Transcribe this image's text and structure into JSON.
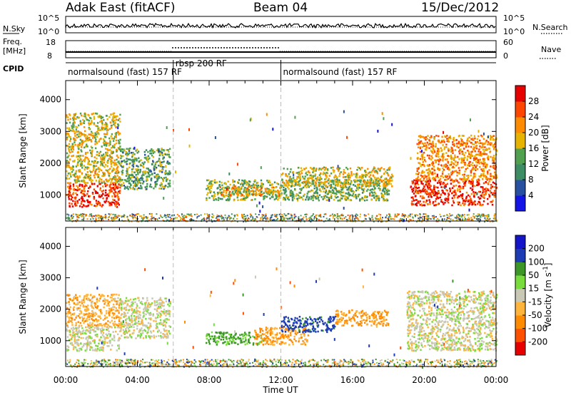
{
  "header": {
    "station": "Adak East (fitACF)",
    "beam": "Beam 04",
    "date": "15/Dec/2012"
  },
  "noise_panel": {
    "left_label": "N.Sky",
    "left_ticks": [
      "10^5",
      "10^0"
    ],
    "right_ticks": [
      "10^5",
      "10^0"
    ],
    "right_label": "N.Search"
  },
  "freq_panel": {
    "left_label_line1": "Freq.",
    "left_label_line2": "[MHz]",
    "left_ticks": [
      "18",
      "8"
    ],
    "right_ticks": [
      "60",
      "0"
    ],
    "right_label": "Nave"
  },
  "cpid": {
    "label": "CPID",
    "segments": [
      {
        "name": "normalsound (fast) 157 RF",
        "start_h": 0,
        "end_h": 6
      },
      {
        "name": "rbsp 200 RF",
        "start_h": 6,
        "end_h": 12
      },
      {
        "name": "normalsound (fast) 157 RF",
        "start_h": 12,
        "end_h": 24
      }
    ]
  },
  "x_axis": {
    "label": "Time UT",
    "ticks": [
      "00:00",
      "04:00",
      "08:00",
      "12:00",
      "16:00",
      "20:00",
      "00:00"
    ]
  },
  "colors": {
    "power": [
      "#1414e6",
      "#2850a0",
      "#3c8c64",
      "#50a050",
      "#e6b400",
      "#ff8c00",
      "#ff4600",
      "#e60000"
    ],
    "velocity": [
      "#e60000",
      "#ff5000",
      "#ff8c00",
      "#ffb43c",
      "#c8c8b4",
      "#78dc3c",
      "#3c9628",
      "#1e3cb4",
      "#1414c8"
    ]
  },
  "chart_data": [
    {
      "type": "heatmap",
      "quantity": "Power",
      "ylabel": "Slant Range [km]",
      "yticks": [
        1000,
        2000,
        3000,
        4000
      ],
      "ylim": [
        180,
        4600
      ],
      "xlim_hours": [
        0,
        24
      ],
      "colorbar_label": "Power [dB]",
      "colorbar_ticks": [
        4,
        8,
        12,
        16,
        20,
        24,
        28
      ],
      "colorbar_range": [
        0,
        32
      ],
      "dashed_lines_hours": [
        6,
        12
      ],
      "features": [
        {
          "t0": 0.0,
          "t1": 3.0,
          "r0": 650,
          "r1": 1400,
          "level": 28
        },
        {
          "t0": 0.0,
          "t1": 3.0,
          "r0": 1400,
          "r1": 3600,
          "level": 18
        },
        {
          "t0": 3.0,
          "t1": 5.8,
          "r0": 1200,
          "r1": 2500,
          "level": 13
        },
        {
          "t0": 7.8,
          "t1": 18.0,
          "r0": 850,
          "r1": 1500,
          "level": 14
        },
        {
          "t0": 8.5,
          "t1": 12.0,
          "r0": 1000,
          "r1": 1300,
          "level": 20
        },
        {
          "t0": 12.0,
          "t1": 18.2,
          "r0": 1300,
          "r1": 1900,
          "level": 18
        },
        {
          "t0": 19.2,
          "t1": 24.0,
          "r0": 700,
          "r1": 1500,
          "level": 28
        },
        {
          "t0": 19.5,
          "t1": 24.0,
          "r0": 1500,
          "r1": 2900,
          "level": 22
        }
      ]
    },
    {
      "type": "heatmap",
      "quantity": "Velocity",
      "ylabel": "Slant Range [km]",
      "yticks": [
        1000,
        2000,
        3000,
        4000
      ],
      "ylim": [
        180,
        4600
      ],
      "xlim_hours": [
        0,
        24
      ],
      "colorbar_label": "Velocity [m s^-1]",
      "colorbar_ticks": [
        200,
        100,
        50,
        15,
        -15,
        -50,
        -100,
        -200
      ],
      "dashed_lines_hours": [
        6,
        12
      ],
      "features": [
        {
          "t0": 0.0,
          "t1": 3.0,
          "r0": 700,
          "r1": 1500,
          "level": 0
        },
        {
          "t0": 0.0,
          "t1": 3.0,
          "r0": 1500,
          "r1": 2500,
          "level": -40
        },
        {
          "t0": 3.0,
          "t1": 5.8,
          "r0": 1100,
          "r1": 2400,
          "level": 0
        },
        {
          "t0": 7.8,
          "t1": 11.0,
          "r0": 900,
          "r1": 1300,
          "level": 60
        },
        {
          "t0": 10.5,
          "t1": 13.5,
          "r0": 900,
          "r1": 1450,
          "level": -60
        },
        {
          "t0": 12.0,
          "t1": 15.0,
          "r0": 1300,
          "r1": 1800,
          "level": 120
        },
        {
          "t0": 15.0,
          "t1": 18.0,
          "r0": 1500,
          "r1": 2000,
          "level": -60
        },
        {
          "t0": 19.0,
          "t1": 24.0,
          "r0": 700,
          "r1": 2600,
          "level": 0
        }
      ]
    }
  ]
}
